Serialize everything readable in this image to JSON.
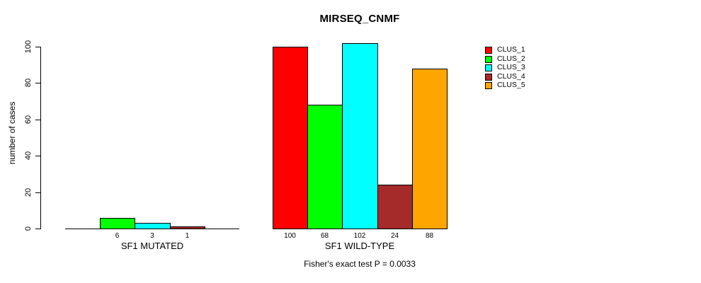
{
  "title": "MIRSEQ_CNMF",
  "y_axis": {
    "label": "number of cases",
    "ticks": [
      0,
      20,
      40,
      60,
      80,
      100
    ]
  },
  "legend": {
    "items": [
      {
        "label": "CLUS_1",
        "color": "#FF0000"
      },
      {
        "label": "CLUS_2",
        "color": "#00FF00"
      },
      {
        "label": "CLUS_3",
        "color": "#00FFFF"
      },
      {
        "label": "CLUS_4",
        "color": "#A52A2A"
      },
      {
        "label": "CLUS_5",
        "color": "#FFA500"
      }
    ]
  },
  "footer": "Fisher's exact test P = 0.0033",
  "chart_data": {
    "type": "bar",
    "title": "MIRSEQ_CNMF",
    "ylabel": "number of cases",
    "ylim": [
      0,
      103
    ],
    "yticks": [
      0,
      20,
      40,
      60,
      80,
      100
    ],
    "grid": false,
    "legend_position": "right",
    "series_names": [
      "CLUS_1",
      "CLUS_2",
      "CLUS_3",
      "CLUS_4",
      "CLUS_5"
    ],
    "colors": [
      "#FF0000",
      "#00FF00",
      "#00FFFF",
      "#A52A2A",
      "#FFA500"
    ],
    "groups": [
      {
        "label": "SF1 MUTATED",
        "values": [
          0,
          6,
          3,
          1,
          0
        ],
        "bar_labels": [
          "",
          "6",
          "3",
          "1",
          ""
        ]
      },
      {
        "label": "SF1 WILD-TYPE",
        "values": [
          100,
          68,
          102,
          24,
          88
        ],
        "bar_labels": [
          "100",
          "68",
          "102",
          "24",
          "88"
        ]
      }
    ],
    "annotation": "Fisher's exact test P = 0.0033"
  }
}
